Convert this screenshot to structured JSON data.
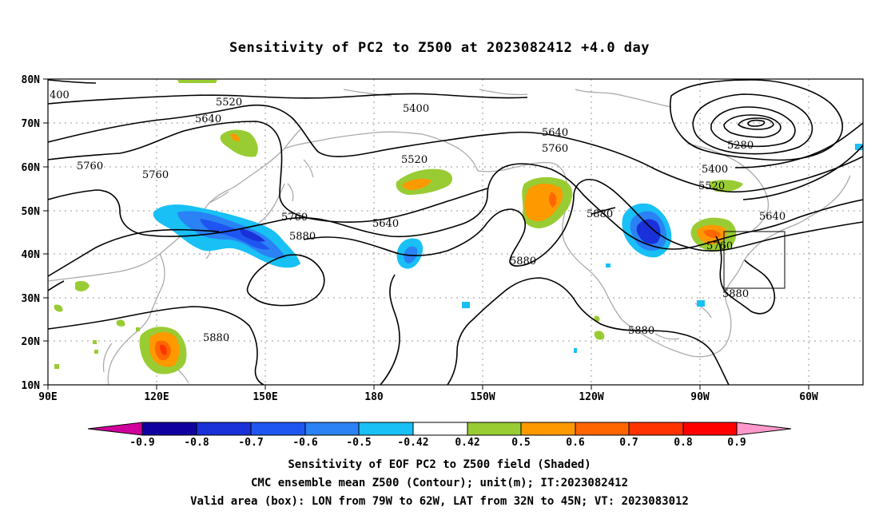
{
  "title": "Sensitivity of PC2 to Z500 at 2023082412 +4.0 day",
  "lat_labels": [
    "80N",
    "70N",
    "60N",
    "50N",
    "40N",
    "30N",
    "20N",
    "10N"
  ],
  "lon_labels": [
    "90E",
    "120E",
    "150E",
    "180",
    "150W",
    "120W",
    "90W",
    "60W"
  ],
  "contour_labels": {
    "c400": "400",
    "c5520a": "5520",
    "c5640a": "5640",
    "c5760a": "5760",
    "c5760b": "5760",
    "c5400a": "5400",
    "c5520b": "5520",
    "c5640b": "5640",
    "c5760c": "5760",
    "c5880a": "5880",
    "c5640c": "5640",
    "c5760d": "5760",
    "c5880b": "5880",
    "c5280": "5280",
    "c5400b": "5400",
    "c5520c": "5520",
    "c5760e": "5760",
    "c5640d": "5640",
    "c5880c": "5880",
    "c5880d": "5880",
    "c5880e": "5880"
  },
  "colorbar": {
    "labels": [
      "-0.9",
      "-0.8",
      "-0.7",
      "-0.6",
      "-0.5",
      "-0.42",
      "0.42",
      "0.5",
      "0.6",
      "0.7",
      "0.8",
      "0.9"
    ],
    "colors": [
      "#d0009a",
      "#1000a0",
      "#1a30d8",
      "#1f55f0",
      "#2a82f5",
      "#18c0f5",
      "#ffffff",
      "#99cc33",
      "#ff9900",
      "#ff6600",
      "#ff3300",
      "#ff0000",
      "#ff99cc"
    ]
  },
  "footer": {
    "line1": "Sensitivity of EOF PC2 to Z500 field (Shaded)",
    "line2": "CMC ensemble mean Z500 (Contour); unit(m); IT:2023082412",
    "line3": "Valid area (box): LON from 79W to 62W, LAT from 32N to 45N; VT: 2023083012"
  }
}
